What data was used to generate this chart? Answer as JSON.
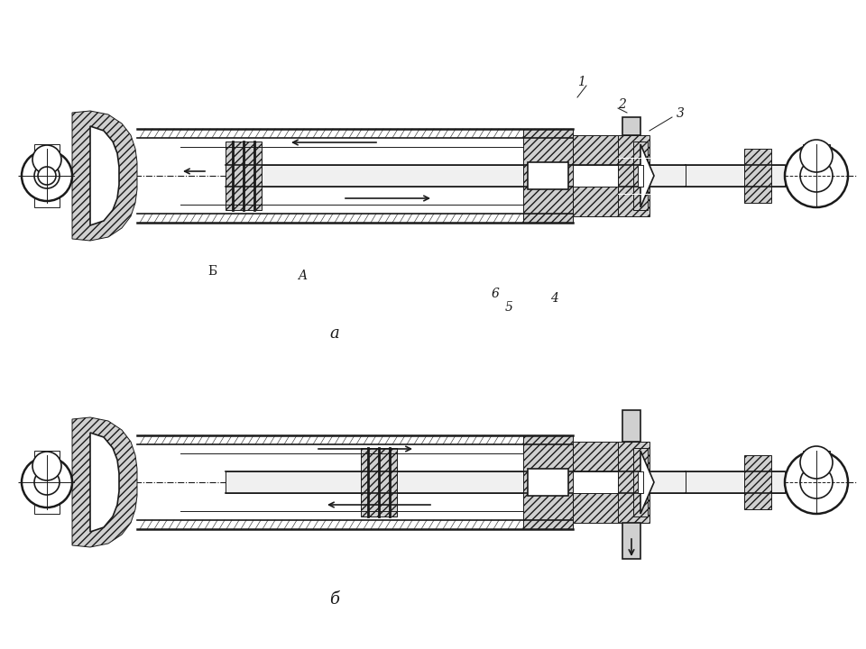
{
  "title": "",
  "bg_color": "#ffffff",
  "line_color": "#1a1a1a",
  "hatch_color": "#1a1a1a",
  "label_a": "a",
  "label_b": "б",
  "labels_top": [
    "1",
    "2",
    "3",
    "A",
    "Б",
    "6",
    "5",
    "4"
  ],
  "figsize": [
    9.6,
    7.2
  ],
  "dpi": 100
}
